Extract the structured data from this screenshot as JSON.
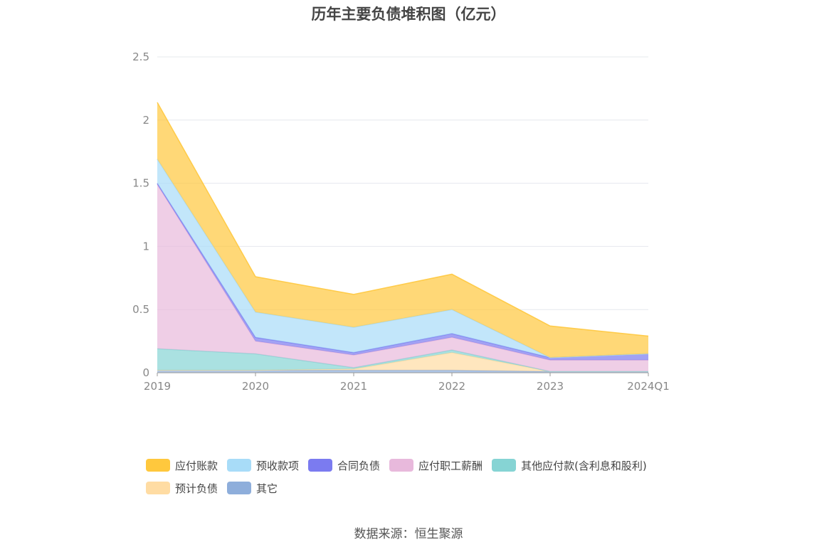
{
  "chart_data": {
    "type": "area",
    "stacked": true,
    "title": "历年主要负债堆积图（亿元）",
    "categories": [
      "2019",
      "2020",
      "2021",
      "2022",
      "2023",
      "2024Q1"
    ],
    "ylim": [
      0,
      2.5
    ],
    "yticks": [
      "0",
      "0.5",
      "1",
      "1.5",
      "2",
      "2.5"
    ],
    "grid": true,
    "legend_position": "bottom",
    "series": [
      {
        "name": "其它",
        "color": "#8eaedb",
        "values": [
          0.02,
          0.02,
          0.02,
          0.02,
          0.01,
          0.01
        ]
      },
      {
        "name": "预计负债",
        "color": "#ffdca3",
        "values": [
          0.0,
          0.0,
          0.01,
          0.14,
          0.0,
          0.0
        ]
      },
      {
        "name": "其他应付款(含利息和股利)",
        "color": "#86d4d4",
        "values": [
          0.17,
          0.13,
          0.01,
          0.02,
          0.0,
          0.0
        ]
      },
      {
        "name": "应付职工薪酬",
        "color": "#e8b9dc",
        "values": [
          1.3,
          0.1,
          0.1,
          0.1,
          0.09,
          0.09
        ]
      },
      {
        "name": "合同负债",
        "color": "#7b7bf0",
        "values": [
          0.01,
          0.03,
          0.02,
          0.03,
          0.02,
          0.05
        ]
      },
      {
        "name": "预收款项",
        "color": "#a8dcf8",
        "values": [
          0.19,
          0.2,
          0.2,
          0.19,
          0.0,
          0.0
        ]
      },
      {
        "name": "应付账款",
        "color": "#ffc83d",
        "values": [
          0.45,
          0.28,
          0.26,
          0.28,
          0.25,
          0.14
        ]
      }
    ]
  },
  "legend": [
    {
      "label": "应付账款",
      "color": "#ffc83d"
    },
    {
      "label": "预收款项",
      "color": "#a8dcf8"
    },
    {
      "label": "合同负债",
      "color": "#7b7bf0"
    },
    {
      "label": "应付职工薪酬",
      "color": "#e8b9dc"
    },
    {
      "label": "其他应付款(含利息和股利)",
      "color": "#86d4d4"
    },
    {
      "label": "预计负债",
      "color": "#ffdca3"
    },
    {
      "label": "其它",
      "color": "#8eaedb"
    }
  ],
  "source": "数据来源：恒生聚源"
}
